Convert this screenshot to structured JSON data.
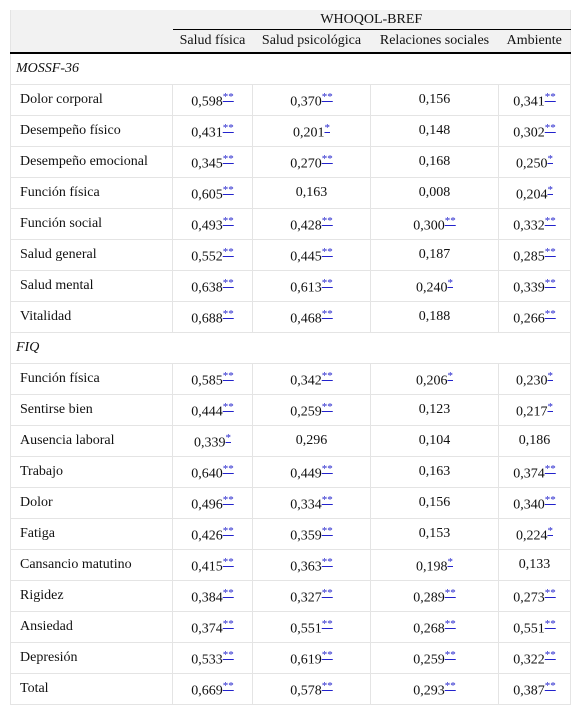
{
  "table": {
    "group_header": "WHOQOL-BREF",
    "columns": [
      "Salud física",
      "Salud psicológica",
      "Relaciones sociales",
      "Ambiente"
    ],
    "sections": [
      {
        "title": "MOSSF-36",
        "rows": [
          {
            "label": "Dolor corporal",
            "cells": [
              [
                "0,598",
                "**"
              ],
              [
                "0,370",
                "**"
              ],
              [
                "0,156"
              ],
              [
                "0,341",
                "**"
              ]
            ]
          },
          {
            "label": "Desempeño físico",
            "cells": [
              [
                "0,431",
                "**"
              ],
              [
                "0,201",
                "*"
              ],
              [
                "0,148"
              ],
              [
                "0,302",
                "**"
              ]
            ]
          },
          {
            "label": "Desempeño emocional",
            "cells": [
              [
                "0,345",
                "**"
              ],
              [
                "0,270",
                "**"
              ],
              [
                "0,168"
              ],
              [
                "0,250",
                "*"
              ]
            ]
          },
          {
            "label": "Función física",
            "cells": [
              [
                "0,605",
                "**"
              ],
              [
                "0,163"
              ],
              [
                "0,008"
              ],
              [
                "0,204",
                "*"
              ]
            ]
          },
          {
            "label": "Función social",
            "cells": [
              [
                "0,493",
                "**"
              ],
              [
                "0,428",
                "**"
              ],
              [
                "0,300",
                "**"
              ],
              [
                "0,332",
                "**"
              ]
            ]
          },
          {
            "label": "Salud general",
            "cells": [
              [
                "0,552",
                "**"
              ],
              [
                "0,445",
                "**"
              ],
              [
                "0,187"
              ],
              [
                "0,285",
                "**"
              ]
            ]
          },
          {
            "label": "Salud mental",
            "cells": [
              [
                "0,638",
                "**"
              ],
              [
                "0,613",
                "**"
              ],
              [
                "0,240",
                "*"
              ],
              [
                "0,339",
                "**"
              ]
            ]
          },
          {
            "label": "Vitalidad",
            "cells": [
              [
                "0,688",
                "**"
              ],
              [
                "0,468",
                "**"
              ],
              [
                "0,188"
              ],
              [
                "0,266",
                "**"
              ]
            ]
          }
        ]
      },
      {
        "title": "FIQ",
        "rows": [
          {
            "label": "Función física",
            "cells": [
              [
                "0,585",
                "**"
              ],
              [
                "0,342",
                "**"
              ],
              [
                "0,206",
                "*"
              ],
              [
                "0,230",
                "*"
              ]
            ]
          },
          {
            "label": "Sentirse bien",
            "cells": [
              [
                "0,444",
                "**"
              ],
              [
                "0,259",
                "**"
              ],
              [
                "0,123"
              ],
              [
                "0,217",
                "*"
              ]
            ]
          },
          {
            "label": "Ausencia laboral",
            "cells": [
              [
                "0,339",
                "*"
              ],
              [
                "0,296"
              ],
              [
                "0,104"
              ],
              [
                "0,186"
              ]
            ]
          },
          {
            "label": "Trabajo",
            "cells": [
              [
                "0,640",
                "**"
              ],
              [
                "0,449",
                "**"
              ],
              [
                "0,163"
              ],
              [
                "0,374",
                "**"
              ]
            ]
          },
          {
            "label": "Dolor",
            "cells": [
              [
                "0,496",
                "**"
              ],
              [
                "0,334",
                "**"
              ],
              [
                "0,156"
              ],
              [
                "0,340",
                "**"
              ]
            ]
          },
          {
            "label": "Fatiga",
            "cells": [
              [
                "0,426",
                "**"
              ],
              [
                "0,359",
                "**"
              ],
              [
                "0,153"
              ],
              [
                "0,224",
                "*"
              ]
            ]
          },
          {
            "label": "Cansancio matutino",
            "cells": [
              [
                "0,415",
                "**"
              ],
              [
                "0,363",
                "**"
              ],
              [
                "0,198",
                "*"
              ],
              [
                "0,133"
              ]
            ]
          },
          {
            "label": "Rigidez",
            "cells": [
              [
                "0,384",
                "**"
              ],
              [
                "0,327",
                "**"
              ],
              [
                "0,289",
                "**"
              ],
              [
                "0,273",
                "**"
              ]
            ]
          },
          {
            "label": "Ansiedad",
            "cells": [
              [
                "0,374",
                "**"
              ],
              [
                "0,551",
                "**"
              ],
              [
                "0,268",
                "**"
              ],
              [
                "0,551",
                "**"
              ]
            ]
          },
          {
            "label": "Depresión",
            "cells": [
              [
                "0,533",
                "**"
              ],
              [
                "0,619",
                "**"
              ],
              [
                "0,259",
                "**"
              ],
              [
                "0,322",
                "**"
              ]
            ]
          },
          {
            "label": "Total",
            "cells": [
              [
                "0,669",
                "**"
              ],
              [
                "0,578",
                "**"
              ],
              [
                "0,293",
                "**"
              ],
              [
                "0,387",
                "**"
              ]
            ]
          }
        ]
      }
    ]
  }
}
